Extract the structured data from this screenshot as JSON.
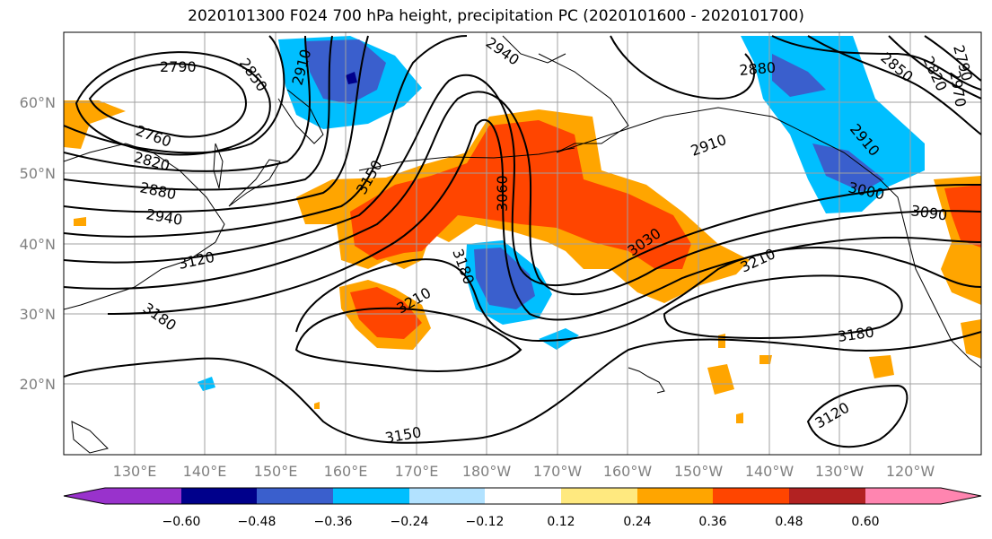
{
  "title": "2020101300 F024 700 hPa height, precipitation PC (2020101600 - 2020101700)",
  "map": {
    "lat_ticks": [
      "60°N",
      "50°N",
      "40°N",
      "30°N",
      "20°N"
    ],
    "lon_ticks": [
      "130°E",
      "140°E",
      "150°E",
      "160°E",
      "170°E",
      "180°W",
      "170°W",
      "160°W",
      "150°W",
      "140°W",
      "130°W",
      "120°W"
    ],
    "contour_labels": [
      "2790",
      "2850",
      "2910",
      "2940",
      "2760",
      "2820",
      "2880",
      "2940",
      "3120",
      "3180",
      "3150",
      "3060",
      "3180",
      "3210",
      "2910",
      "3030",
      "3210",
      "3180",
      "3150",
      "3120",
      "2880",
      "2850",
      "2820",
      "2790",
      "2910",
      "3000",
      "3090",
      "2970"
    ]
  },
  "colorbar": {
    "tick_labels": [
      "−0.60",
      "−0.48",
      "−0.36",
      "−0.24",
      "−0.12",
      "0.12",
      "0.24",
      "0.36",
      "0.48",
      "0.60"
    ],
    "colors": [
      "#9932cc",
      "#00008b",
      "#3a5fcd",
      "#00bfff",
      "#b2e2ff",
      "#ffffff",
      "#ffe97f",
      "#ffa500",
      "#ff4500",
      "#b22222",
      "#ff85b0"
    ]
  },
  "colors": {
    "negative_dark": "#3a5fcd",
    "negative": "#00bfff",
    "positive": "#ffa500",
    "positive_strong": "#ff4500"
  }
}
